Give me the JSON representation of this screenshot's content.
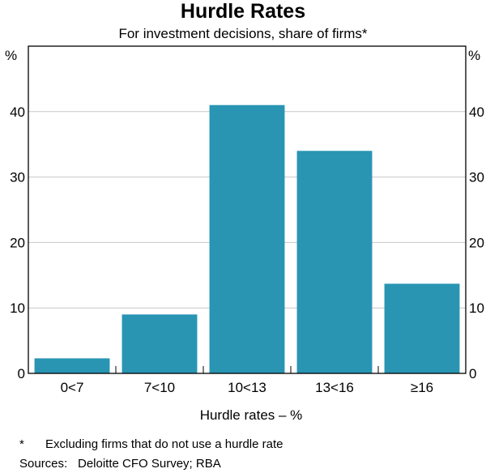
{
  "chart_data": {
    "type": "bar",
    "title": "Hurdle Rates",
    "subtitle": "For investment decisions, share of firms*",
    "xlabel": "Hurdle rates – %",
    "ylabel": "%",
    "ylabel_right": "%",
    "categories": [
      "0<7",
      "7<10",
      "10<13",
      "13<16",
      "≥16"
    ],
    "values": [
      2.3,
      9.0,
      41.0,
      34.0,
      13.7
    ],
    "ylim": [
      0,
      50
    ],
    "yticks": [
      0,
      10,
      20,
      30,
      40
    ],
    "grid": true,
    "bar_color": "#2995b3"
  },
  "footnotes": {
    "asterisk_mark": "*",
    "asterisk_text": "Excluding firms that do not use a hurdle rate",
    "sources_label": "Sources:",
    "sources_text": "Deloitte CFO Survey; RBA"
  }
}
